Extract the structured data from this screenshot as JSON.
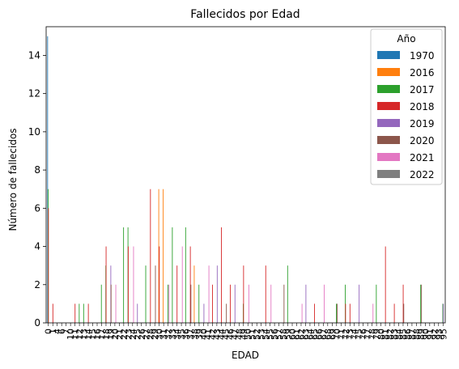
{
  "chart_data": {
    "type": "bar",
    "title": "Fallecidos por Edad",
    "xlabel": "EDAD",
    "ylabel": "Número de fallecidos",
    "ylim": [
      0,
      15.5
    ],
    "yticks": [
      0,
      2,
      4,
      6,
      8,
      10,
      12,
      14
    ],
    "grid": false,
    "legend": {
      "title": "Año",
      "placement": "top-right"
    },
    "categories": [
      "0",
      "1",
      "4",
      "6",
      "7",
      "10",
      "11",
      "12",
      "13",
      "14",
      "15",
      "16",
      "17",
      "18",
      "19",
      "20",
      "21",
      "22",
      "23",
      "24",
      "25",
      "26",
      "27",
      "28",
      "29",
      "30",
      "31",
      "32",
      "33",
      "34",
      "35",
      "36",
      "37",
      "38",
      "39",
      "40",
      "41",
      "42",
      "43",
      "44",
      "45",
      "46",
      "47",
      "48",
      "49",
      "50",
      "51",
      "52",
      "53",
      "54",
      "55",
      "56",
      "57",
      "58",
      "59",
      "60",
      "61",
      "62",
      "63",
      "64",
      "65",
      "66",
      "67",
      "68",
      "69",
      "70",
      "71",
      "72",
      "73",
      "74",
      "75",
      "76",
      "77",
      "78",
      "79",
      "80",
      "81",
      "82",
      "83",
      "84",
      "85",
      "86",
      "87",
      "88",
      "89",
      "90",
      "91",
      "92",
      "93",
      "95"
    ],
    "series": [
      {
        "name": "1970",
        "color": "#1f77b4",
        "values": [
          15,
          0,
          0,
          0,
          0,
          0,
          0,
          0,
          0,
          0,
          0,
          0,
          0,
          0,
          0,
          0,
          0,
          0,
          0,
          0,
          0,
          0,
          0,
          0,
          0,
          0,
          0,
          0,
          0,
          0,
          0,
          0,
          0,
          0,
          0,
          0,
          0,
          0,
          0,
          0,
          0,
          0,
          0,
          0,
          0,
          0,
          0,
          0,
          0,
          0,
          0,
          0,
          0,
          0,
          0,
          0,
          0,
          0,
          0,
          0,
          0,
          0,
          0,
          0,
          0,
          0,
          0,
          0,
          0,
          0,
          0,
          0,
          0,
          0,
          0,
          0,
          0,
          0,
          0,
          0,
          0,
          0,
          0,
          0,
          0,
          0,
          0,
          0,
          0,
          0
        ]
      },
      {
        "name": "2016",
        "color": "#ff7f0e",
        "values": [
          0,
          0,
          0,
          0,
          0,
          0,
          0,
          0,
          0,
          0,
          0,
          0,
          0,
          0,
          0,
          0,
          0,
          0,
          0,
          0,
          0,
          0,
          0,
          0,
          0,
          7,
          7,
          0,
          0,
          0,
          0,
          0,
          0,
          3,
          0,
          0,
          0,
          0,
          0,
          0,
          0,
          0,
          0,
          0,
          0,
          0,
          0,
          0,
          0,
          0,
          0,
          0,
          0,
          0,
          0,
          0,
          0,
          0,
          0,
          0,
          0,
          0,
          0,
          0,
          0,
          0,
          0,
          0,
          0,
          0,
          0,
          0,
          0,
          0,
          0,
          0,
          0,
          0,
          0,
          0,
          0,
          0,
          0,
          0,
          0,
          0,
          0,
          0,
          0,
          0
        ]
      },
      {
        "name": "2017",
        "color": "#2ca02c",
        "values": [
          7,
          0,
          0,
          0,
          0,
          0,
          0,
          1,
          1,
          0,
          0,
          0,
          2,
          3,
          0,
          0,
          0,
          5,
          5,
          0,
          0,
          0,
          3,
          0,
          0,
          0,
          0,
          2,
          5,
          0,
          0,
          5,
          0,
          0,
          2,
          0,
          0,
          0,
          0,
          0,
          0,
          0,
          0,
          0,
          1,
          0,
          0,
          0,
          0,
          0,
          0,
          0,
          0,
          0,
          3,
          0,
          0,
          0,
          0,
          0,
          0,
          0,
          0,
          0,
          0,
          1,
          0,
          2,
          0,
          0,
          0,
          0,
          0,
          0,
          2,
          0,
          0,
          0,
          0,
          0,
          0,
          0,
          0,
          0,
          2,
          0,
          0,
          0,
          0,
          1
        ]
      },
      {
        "name": "2018",
        "color": "#d62728",
        "values": [
          6,
          1,
          0,
          0,
          0,
          0,
          1,
          0,
          0,
          1,
          0,
          0,
          0,
          4,
          0,
          0,
          0,
          0,
          4,
          0,
          0,
          0,
          0,
          7,
          0,
          4,
          0,
          0,
          0,
          3,
          0,
          0,
          4,
          0,
          0,
          0,
          0,
          2,
          0,
          5,
          0,
          2,
          0,
          0,
          3,
          0,
          0,
          0,
          0,
          3,
          0,
          0,
          0,
          0,
          0,
          0,
          0,
          0,
          0,
          0,
          1,
          0,
          0,
          0,
          0,
          0,
          0,
          1,
          1,
          0,
          0,
          0,
          0,
          0,
          0,
          0,
          4,
          0,
          1,
          0,
          2,
          0,
          0,
          0,
          0,
          0,
          0,
          0,
          0,
          0
        ]
      },
      {
        "name": "2019",
        "color": "#9467bd",
        "values": [
          0,
          0,
          0,
          0,
          0,
          0,
          0,
          0,
          0,
          0,
          0,
          0,
          0,
          0,
          3,
          0,
          0,
          0,
          0,
          0,
          1,
          0,
          0,
          0,
          0,
          0,
          0,
          0,
          0,
          0,
          0,
          0,
          0,
          0,
          0,
          1,
          0,
          0,
          3,
          0,
          0,
          0,
          2,
          0,
          0,
          0,
          0,
          0,
          0,
          0,
          0,
          0,
          0,
          0,
          0,
          0,
          0,
          0,
          2,
          0,
          0,
          0,
          0,
          0,
          0,
          0,
          0,
          0,
          0,
          0,
          2,
          0,
          0,
          0,
          0,
          0,
          0,
          0,
          0,
          0,
          0,
          0,
          0,
          0,
          0,
          0,
          0,
          0,
          0,
          1
        ]
      },
      {
        "name": "2020",
        "color": "#8c564b",
        "values": [
          0,
          0,
          0,
          0,
          0,
          0,
          0,
          0,
          0,
          0,
          0,
          0,
          0,
          0,
          2,
          0,
          0,
          0,
          0,
          0,
          0,
          0,
          0,
          0,
          3,
          0,
          0,
          0,
          0,
          0,
          0,
          0,
          2,
          0,
          0,
          0,
          0,
          0,
          0,
          0,
          1,
          0,
          0,
          0,
          0,
          0,
          0,
          0,
          0,
          0,
          0,
          0,
          0,
          2,
          0,
          0,
          0,
          0,
          0,
          0,
          0,
          0,
          0,
          0,
          0,
          1,
          0,
          0,
          0,
          0,
          0,
          0,
          0,
          0,
          0,
          0,
          0,
          0,
          0,
          0,
          1,
          0,
          0,
          0,
          2,
          0,
          0,
          0,
          0,
          0
        ]
      },
      {
        "name": "2021",
        "color": "#e377c2",
        "values": [
          0,
          0,
          0,
          0,
          0,
          0,
          0,
          0,
          0,
          0,
          0,
          0,
          0,
          0,
          0,
          2,
          0,
          0,
          0,
          4,
          0,
          0,
          0,
          0,
          0,
          0,
          0,
          2,
          0,
          0,
          4,
          0,
          0,
          0,
          0,
          0,
          3,
          0,
          0,
          0,
          0,
          0,
          0,
          0,
          0,
          2,
          0,
          0,
          0,
          0,
          2,
          0,
          0,
          0,
          0,
          0,
          0,
          1,
          0,
          0,
          0,
          0,
          2,
          0,
          0,
          0,
          0,
          0,
          0,
          0,
          0,
          0,
          0,
          1,
          0,
          0,
          0,
          0,
          0,
          0,
          0,
          0,
          0,
          0,
          0,
          0,
          0,
          0,
          0,
          0
        ]
      },
      {
        "name": "2022",
        "color": "#7f7f7f",
        "values": [
          0,
          0,
          0,
          0,
          0,
          0,
          0,
          0,
          0,
          0,
          0,
          0,
          0,
          0,
          0,
          0,
          0,
          0,
          0,
          0,
          0,
          0,
          0,
          0,
          0,
          0,
          0,
          0,
          0,
          0,
          0,
          0,
          0,
          0,
          0,
          0,
          0,
          0,
          0,
          0,
          0,
          0,
          0,
          0,
          0,
          0,
          0,
          0,
          0,
          0,
          0,
          0,
          0,
          0,
          0,
          0,
          0,
          0,
          0,
          0,
          0,
          0,
          0,
          0,
          0,
          0,
          0,
          0,
          0,
          0,
          0,
          0,
          0,
          0,
          0,
          0,
          0,
          0,
          0,
          0,
          0,
          0,
          0,
          0,
          0,
          0,
          0,
          0,
          0,
          0
        ]
      }
    ]
  }
}
